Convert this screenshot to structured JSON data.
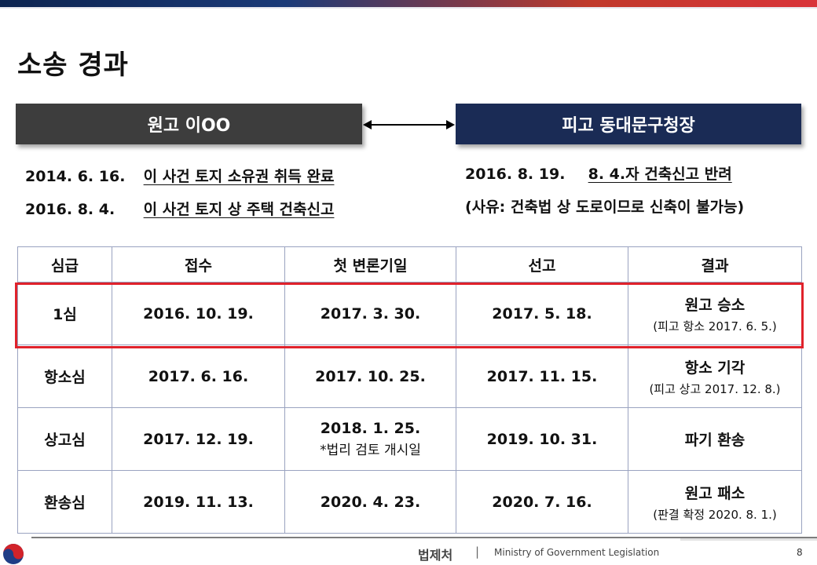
{
  "slide": {
    "title": "소송 경과",
    "page_number": "8"
  },
  "parties": {
    "plaintiff": "원고 이OO",
    "defendant": "피고 동대문구청장"
  },
  "plaintiff_facts": [
    {
      "date": "2014. 6. 16.",
      "text": "이 사건 토지 소유권 취득 완료"
    },
    {
      "date": "2016. 8. 4.",
      "text": "이 사건 토지 상 주택 건축신고"
    }
  ],
  "defendant_facts": {
    "date": "2016. 8. 19.",
    "text": "8. 4.자 건축신고 반려",
    "reason": "(사유: 건축법 상 도로이므로 신축이 불가능)"
  },
  "table": {
    "headers": [
      "심급",
      "접수",
      "첫 변론기일",
      "선고",
      "결과"
    ],
    "rows": [
      {
        "level": "1심",
        "filed": "2016. 10. 19.",
        "first_hearing": "2017. 3. 30.",
        "first_hearing_note": "",
        "ruling": "2017. 5. 18.",
        "result": "원고 승소",
        "result_note": "(피고 항소 2017. 6. 5.)"
      },
      {
        "level": "항소심",
        "filed": "2017. 6. 16.",
        "first_hearing": "2017. 10. 25.",
        "first_hearing_note": "",
        "ruling": "2017. 11. 15.",
        "result": "항소 기각",
        "result_note": "(피고 상고 2017. 12. 8.)"
      },
      {
        "level": "상고심",
        "filed": "2017. 12. 19.",
        "first_hearing": "2018. 1. 25.",
        "first_hearing_note": "*법리 검토 개시일",
        "ruling": "2019. 10. 31.",
        "result": "파기 환송",
        "result_note": ""
      },
      {
        "level": "환송심",
        "filed": "2019. 11. 13.",
        "first_hearing": "2020. 4. 23.",
        "first_hearing_note": "",
        "ruling": "2020. 7. 16.",
        "result": "원고 패소",
        "result_note": "(판결 확정 2020. 8. 1.)"
      }
    ]
  },
  "footer": {
    "org_korean": "법제처",
    "separator": "|",
    "org_english": "Ministry of Government Legislation"
  },
  "colors": {
    "plaintiff_box": "#3d3d3d",
    "defendant_box": "#1a2b55",
    "highlight": "#e0222b",
    "table_border": "#9aa3c0"
  }
}
